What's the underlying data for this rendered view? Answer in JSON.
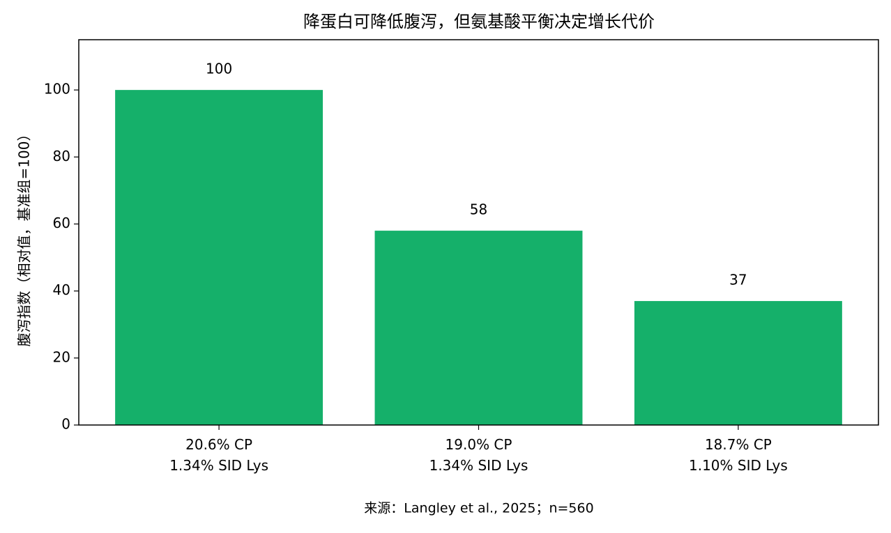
{
  "chart_data": {
    "type": "bar",
    "title": "降蛋白可降低腹泻，但氨基酸平衡决定增长代价",
    "y_label": "腹泻指数（相对值，基准组=100）",
    "source": "来源：Langley et al., 2025；n=560",
    "categories": [
      "20.6% CP\n1.34% SID Lys",
      "19.0% CP\n1.34% SID Lys",
      "18.7% CP\n1.10% SID Lys"
    ],
    "values": [
      100,
      58,
      37
    ],
    "color": "#15b06a",
    "ylim": [
      0,
      115
    ],
    "yticks": [
      0,
      20,
      40,
      60,
      80,
      100
    ],
    "grid": false
  }
}
